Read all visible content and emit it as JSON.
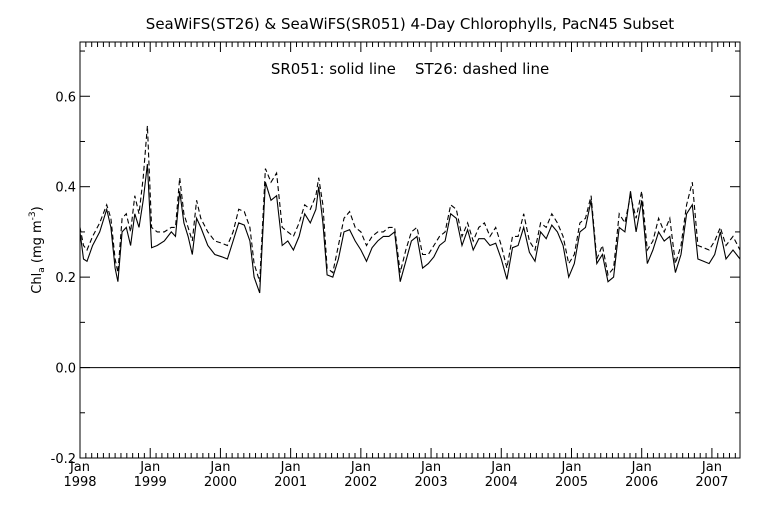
{
  "chart_data": {
    "type": "line",
    "title": "SeaWiFS(ST26) & SeaWiFS(SR051) 4-Day Chlorophylls, PacN45 Subset",
    "annotation": "SR051: solid line    ST26: dashed line",
    "ylabel": {
      "main": "Chl",
      "sub": "a",
      "units": " (mg m",
      "exp": "-3",
      "close": ")"
    },
    "xlim": [
      1998.0,
      2007.4
    ],
    "ylim": [
      -0.2,
      0.72
    ],
    "yticks": [
      -0.2,
      0.0,
      0.2,
      0.4,
      0.6
    ],
    "ytick_labels": [
      "-0.2",
      "0.0",
      "0.2",
      "0.4",
      "0.6"
    ],
    "xticks": [
      {
        "x": 1998.0,
        "month": "Jan",
        "year": "1998"
      },
      {
        "x": 1999.0,
        "month": "Jan",
        "year": "1999"
      },
      {
        "x": 2000.0,
        "month": "Jan",
        "year": "2000"
      },
      {
        "x": 2001.0,
        "month": "Jan",
        "year": "2001"
      },
      {
        "x": 2002.0,
        "month": "Jan",
        "year": "2002"
      },
      {
        "x": 2003.0,
        "month": "Jan",
        "year": "2003"
      },
      {
        "x": 2004.0,
        "month": "Jan",
        "year": "2004"
      },
      {
        "x": 2005.0,
        "month": "Jan",
        "year": "2005"
      },
      {
        "x": 2006.0,
        "month": "Jan",
        "year": "2006"
      },
      {
        "x": 2007.0,
        "month": "Jan",
        "year": "2007"
      }
    ],
    "reference_line_y": 0.0,
    "grid": false,
    "series": [
      {
        "name": "SR051",
        "style": "solid",
        "color": "#000000",
        "points": [
          [
            1998.0,
            0.3
          ],
          [
            1998.05,
            0.24
          ],
          [
            1998.1,
            0.235
          ],
          [
            1998.18,
            0.27
          ],
          [
            1998.28,
            0.3
          ],
          [
            1998.38,
            0.35
          ],
          [
            1998.44,
            0.31
          ],
          [
            1998.5,
            0.22
          ],
          [
            1998.54,
            0.19
          ],
          [
            1998.6,
            0.3
          ],
          [
            1998.66,
            0.31
          ],
          [
            1998.72,
            0.27
          ],
          [
            1998.78,
            0.34
          ],
          [
            1998.84,
            0.31
          ],
          [
            1998.9,
            0.37
          ],
          [
            1998.96,
            0.45
          ],
          [
            1999.02,
            0.265
          ],
          [
            1999.1,
            0.27
          ],
          [
            1999.2,
            0.28
          ],
          [
            1999.3,
            0.3
          ],
          [
            1999.36,
            0.29
          ],
          [
            1999.42,
            0.39
          ],
          [
            1999.48,
            0.32
          ],
          [
            1999.54,
            0.29
          ],
          [
            1999.6,
            0.25
          ],
          [
            1999.66,
            0.33
          ],
          [
            1999.72,
            0.31
          ],
          [
            1999.82,
            0.27
          ],
          [
            1999.92,
            0.25
          ],
          [
            2000.02,
            0.245
          ],
          [
            2000.1,
            0.24
          ],
          [
            2000.18,
            0.28
          ],
          [
            2000.26,
            0.32
          ],
          [
            2000.34,
            0.315
          ],
          [
            2000.42,
            0.28
          ],
          [
            2000.48,
            0.2
          ],
          [
            2000.56,
            0.165
          ],
          [
            2000.64,
            0.41
          ],
          [
            2000.72,
            0.37
          ],
          [
            2000.8,
            0.38
          ],
          [
            2000.88,
            0.27
          ],
          [
            2000.96,
            0.28
          ],
          [
            2001.04,
            0.26
          ],
          [
            2001.12,
            0.29
          ],
          [
            2001.2,
            0.34
          ],
          [
            2001.28,
            0.32
          ],
          [
            2001.36,
            0.35
          ],
          [
            2001.4,
            0.4
          ],
          [
            2001.46,
            0.32
          ],
          [
            2001.52,
            0.205
          ],
          [
            2001.6,
            0.2
          ],
          [
            2001.68,
            0.24
          ],
          [
            2001.76,
            0.3
          ],
          [
            2001.84,
            0.305
          ],
          [
            2001.92,
            0.28
          ],
          [
            2002.0,
            0.26
          ],
          [
            2002.08,
            0.235
          ],
          [
            2002.16,
            0.265
          ],
          [
            2002.24,
            0.28
          ],
          [
            2002.32,
            0.29
          ],
          [
            2002.4,
            0.29
          ],
          [
            2002.48,
            0.3
          ],
          [
            2002.56,
            0.19
          ],
          [
            2002.64,
            0.235
          ],
          [
            2002.72,
            0.28
          ],
          [
            2002.8,
            0.29
          ],
          [
            2002.88,
            0.22
          ],
          [
            2002.96,
            0.23
          ],
          [
            2003.04,
            0.245
          ],
          [
            2003.12,
            0.27
          ],
          [
            2003.2,
            0.28
          ],
          [
            2003.28,
            0.34
          ],
          [
            2003.36,
            0.33
          ],
          [
            2003.44,
            0.27
          ],
          [
            2003.52,
            0.305
          ],
          [
            2003.6,
            0.26
          ],
          [
            2003.68,
            0.285
          ],
          [
            2003.76,
            0.285
          ],
          [
            2003.84,
            0.27
          ],
          [
            2003.92,
            0.275
          ],
          [
            2004.0,
            0.24
          ],
          [
            2004.08,
            0.195
          ],
          [
            2004.16,
            0.265
          ],
          [
            2004.24,
            0.27
          ],
          [
            2004.32,
            0.31
          ],
          [
            2004.4,
            0.255
          ],
          [
            2004.48,
            0.235
          ],
          [
            2004.56,
            0.3
          ],
          [
            2004.64,
            0.285
          ],
          [
            2004.72,
            0.315
          ],
          [
            2004.8,
            0.3
          ],
          [
            2004.88,
            0.27
          ],
          [
            2004.96,
            0.2
          ],
          [
            2005.04,
            0.23
          ],
          [
            2005.12,
            0.3
          ],
          [
            2005.2,
            0.31
          ],
          [
            2005.28,
            0.37
          ],
          [
            2005.36,
            0.23
          ],
          [
            2005.44,
            0.25
          ],
          [
            2005.52,
            0.19
          ],
          [
            2005.6,
            0.2
          ],
          [
            2005.68,
            0.31
          ],
          [
            2005.76,
            0.3
          ],
          [
            2005.84,
            0.39
          ],
          [
            2005.92,
            0.3
          ],
          [
            2006.0,
            0.37
          ],
          [
            2006.08,
            0.23
          ],
          [
            2006.16,
            0.26
          ],
          [
            2006.24,
            0.3
          ],
          [
            2006.32,
            0.28
          ],
          [
            2006.4,
            0.29
          ],
          [
            2006.48,
            0.21
          ],
          [
            2006.56,
            0.25
          ],
          [
            2006.64,
            0.34
          ],
          [
            2006.72,
            0.36
          ],
          [
            2006.8,
            0.24
          ],
          [
            2006.88,
            0.235
          ],
          [
            2006.96,
            0.23
          ],
          [
            2007.04,
            0.25
          ],
          [
            2007.12,
            0.3
          ],
          [
            2007.2,
            0.24
          ],
          [
            2007.3,
            0.26
          ],
          [
            2007.4,
            0.24
          ]
        ]
      },
      {
        "name": "ST26",
        "style": "dashed",
        "color": "#000000",
        "points": [
          [
            1998.0,
            0.31
          ],
          [
            1998.05,
            0.27
          ],
          [
            1998.1,
            0.26
          ],
          [
            1998.18,
            0.29
          ],
          [
            1998.28,
            0.32
          ],
          [
            1998.38,
            0.36
          ],
          [
            1998.44,
            0.33
          ],
          [
            1998.5,
            0.24
          ],
          [
            1998.54,
            0.21
          ],
          [
            1998.6,
            0.33
          ],
          [
            1998.66,
            0.34
          ],
          [
            1998.72,
            0.3
          ],
          [
            1998.78,
            0.38
          ],
          [
            1998.84,
            0.34
          ],
          [
            1998.9,
            0.42
          ],
          [
            1998.96,
            0.535
          ],
          [
            1999.02,
            0.31
          ],
          [
            1999.1,
            0.3
          ],
          [
            1999.2,
            0.3
          ],
          [
            1999.3,
            0.31
          ],
          [
            1999.36,
            0.31
          ],
          [
            1999.42,
            0.42
          ],
          [
            1999.48,
            0.34
          ],
          [
            1999.54,
            0.31
          ],
          [
            1999.6,
            0.28
          ],
          [
            1999.66,
            0.37
          ],
          [
            1999.72,
            0.33
          ],
          [
            1999.82,
            0.3
          ],
          [
            1999.92,
            0.28
          ],
          [
            2000.02,
            0.275
          ],
          [
            2000.1,
            0.27
          ],
          [
            2000.18,
            0.3
          ],
          [
            2000.26,
            0.35
          ],
          [
            2000.34,
            0.345
          ],
          [
            2000.42,
            0.31
          ],
          [
            2000.48,
            0.23
          ],
          [
            2000.56,
            0.19
          ],
          [
            2000.64,
            0.44
          ],
          [
            2000.72,
            0.41
          ],
          [
            2000.8,
            0.43
          ],
          [
            2000.88,
            0.31
          ],
          [
            2000.96,
            0.3
          ],
          [
            2001.04,
            0.29
          ],
          [
            2001.12,
            0.32
          ],
          [
            2001.2,
            0.36
          ],
          [
            2001.28,
            0.35
          ],
          [
            2001.36,
            0.38
          ],
          [
            2001.4,
            0.42
          ],
          [
            2001.46,
            0.36
          ],
          [
            2001.52,
            0.22
          ],
          [
            2001.6,
            0.21
          ],
          [
            2001.68,
            0.27
          ],
          [
            2001.76,
            0.33
          ],
          [
            2001.84,
            0.345
          ],
          [
            2001.92,
            0.31
          ],
          [
            2002.0,
            0.3
          ],
          [
            2002.08,
            0.27
          ],
          [
            2002.16,
            0.29
          ],
          [
            2002.24,
            0.3
          ],
          [
            2002.32,
            0.3
          ],
          [
            2002.4,
            0.31
          ],
          [
            2002.48,
            0.31
          ],
          [
            2002.56,
            0.21
          ],
          [
            2002.64,
            0.26
          ],
          [
            2002.72,
            0.3
          ],
          [
            2002.8,
            0.31
          ],
          [
            2002.88,
            0.25
          ],
          [
            2002.96,
            0.25
          ],
          [
            2003.04,
            0.27
          ],
          [
            2003.12,
            0.29
          ],
          [
            2003.2,
            0.3
          ],
          [
            2003.28,
            0.36
          ],
          [
            2003.36,
            0.35
          ],
          [
            2003.44,
            0.29
          ],
          [
            2003.52,
            0.32
          ],
          [
            2003.6,
            0.28
          ],
          [
            2003.68,
            0.31
          ],
          [
            2003.76,
            0.32
          ],
          [
            2003.84,
            0.29
          ],
          [
            2003.92,
            0.31
          ],
          [
            2004.0,
            0.27
          ],
          [
            2004.08,
            0.22
          ],
          [
            2004.16,
            0.29
          ],
          [
            2004.24,
            0.29
          ],
          [
            2004.32,
            0.34
          ],
          [
            2004.4,
            0.28
          ],
          [
            2004.48,
            0.26
          ],
          [
            2004.56,
            0.32
          ],
          [
            2004.64,
            0.31
          ],
          [
            2004.72,
            0.34
          ],
          [
            2004.8,
            0.32
          ],
          [
            2004.88,
            0.29
          ],
          [
            2004.96,
            0.23
          ],
          [
            2005.04,
            0.25
          ],
          [
            2005.12,
            0.32
          ],
          [
            2005.2,
            0.33
          ],
          [
            2005.28,
            0.38
          ],
          [
            2005.36,
            0.24
          ],
          [
            2005.44,
            0.27
          ],
          [
            2005.52,
            0.205
          ],
          [
            2005.6,
            0.22
          ],
          [
            2005.68,
            0.34
          ],
          [
            2005.76,
            0.32
          ],
          [
            2005.84,
            0.38
          ],
          [
            2005.92,
            0.33
          ],
          [
            2006.0,
            0.39
          ],
          [
            2006.08,
            0.26
          ],
          [
            2006.16,
            0.28
          ],
          [
            2006.24,
            0.33
          ],
          [
            2006.32,
            0.3
          ],
          [
            2006.4,
            0.33
          ],
          [
            2006.48,
            0.23
          ],
          [
            2006.56,
            0.27
          ],
          [
            2006.64,
            0.36
          ],
          [
            2006.72,
            0.41
          ],
          [
            2006.8,
            0.27
          ],
          [
            2006.88,
            0.265
          ],
          [
            2006.96,
            0.26
          ],
          [
            2007.04,
            0.28
          ],
          [
            2007.12,
            0.31
          ],
          [
            2007.2,
            0.27
          ],
          [
            2007.3,
            0.29
          ],
          [
            2007.4,
            0.26
          ]
        ]
      }
    ]
  }
}
